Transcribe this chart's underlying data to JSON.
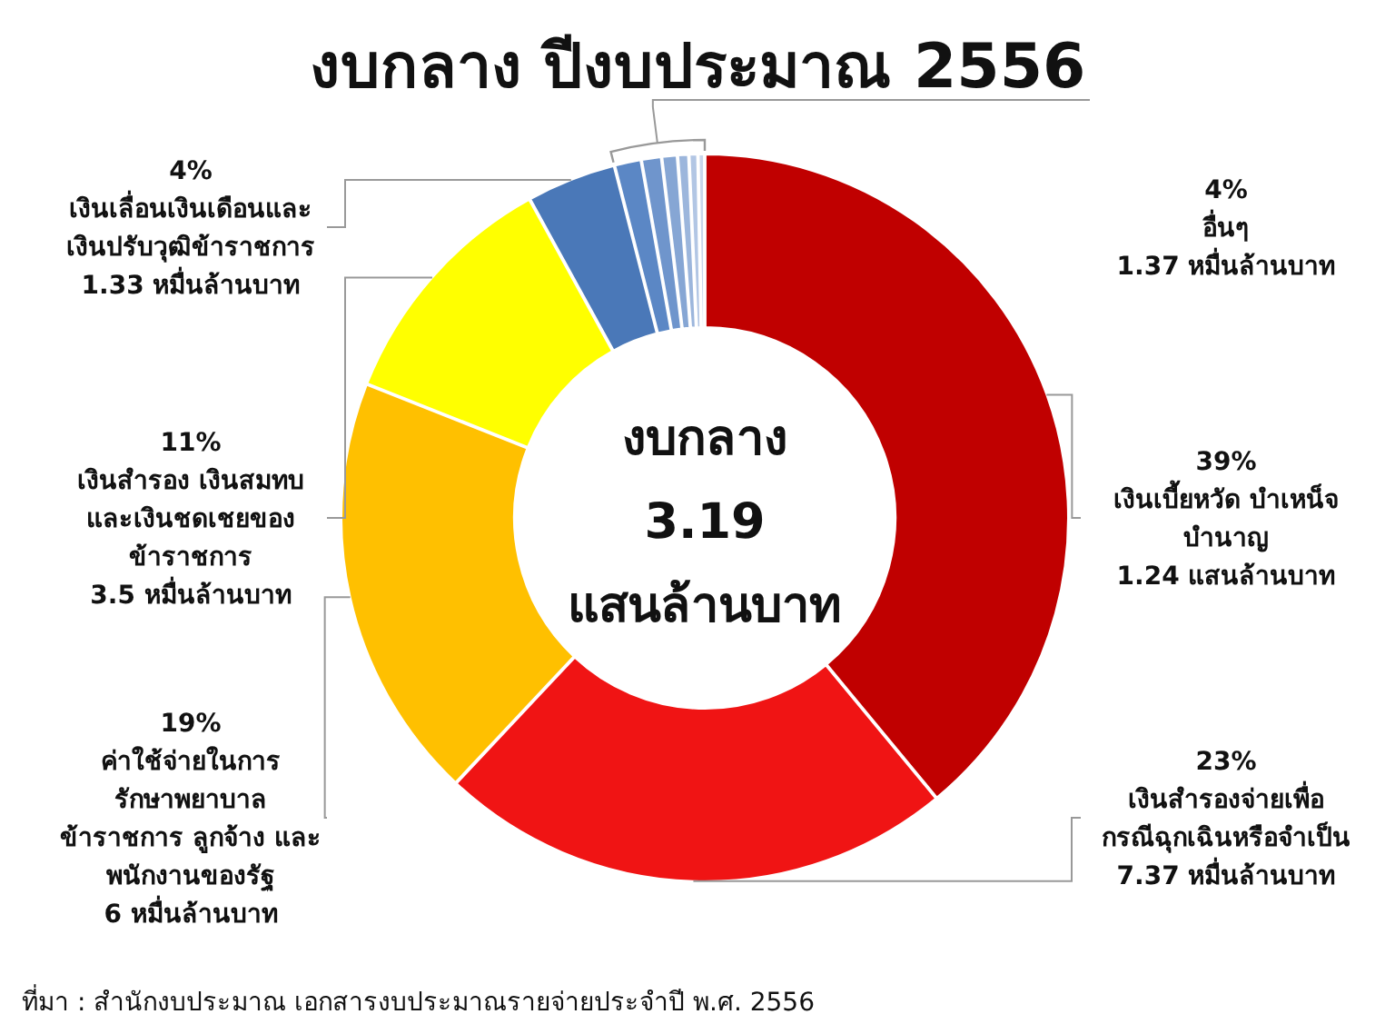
{
  "chart_data": {
    "type": "donut",
    "title": "งบกลาง ปีงบประมาณ 2556",
    "categories": [
      "เงินเบี้ยหวัด บำเหน็จ\nบำนาญ\n1.24 แสนล้านบาท",
      "เงินสำรองจ่ายเพื่อ\nกรณีฉุกเฉินหรือจำเป็น\n7.37 หมื่นล้านบาท",
      "ค่าใช้จ่ายในการ\nรักษาพยาบาล\nข้าราชการ ลูกจ้าง และ\nพนักงานของรัฐ\n6 หมื่นล้านบาท",
      "เงินสำรอง เงินสมทบ\nและเงินชดเชยของ\nข้าราชการ\n3.5 หมื่นล้านบาท",
      "เงินเลื่อนเงินเดือนและ\nเงินปรับวุฒิข้าราชการ\n1.33 หมื่นล้านบาท",
      null,
      null,
      null,
      null,
      null,
      null
    ],
    "values": [
      39,
      23,
      19,
      11,
      4,
      1.2,
      0.9,
      0.7,
      0.5,
      0.4,
      0.3
    ],
    "value_labels": [
      "39%",
      "23%",
      "19%",
      "11%",
      "4%",
      null,
      null,
      null,
      null,
      null,
      null
    ],
    "colors": [
      "#c00000",
      "#f01414",
      "#ffc000",
      "#ffff00",
      "#4a78b8",
      "#5b87c5",
      "#6f95cc",
      "#86a6d4",
      "#9cb6dc",
      "#b2c6e4",
      "#c8d6ec"
    ],
    "annotations": [
      "งบกลาง\n3.19\nแสนล้านบาท",
      "4%\nอื่นๆ\n1.37 หมื่นล้านบาท",
      "ที่มา : สำนักงบประมาณ เอกสารงบประมาณรายจ่ายประจำปี พ.ศ. 2556"
    ]
  }
}
